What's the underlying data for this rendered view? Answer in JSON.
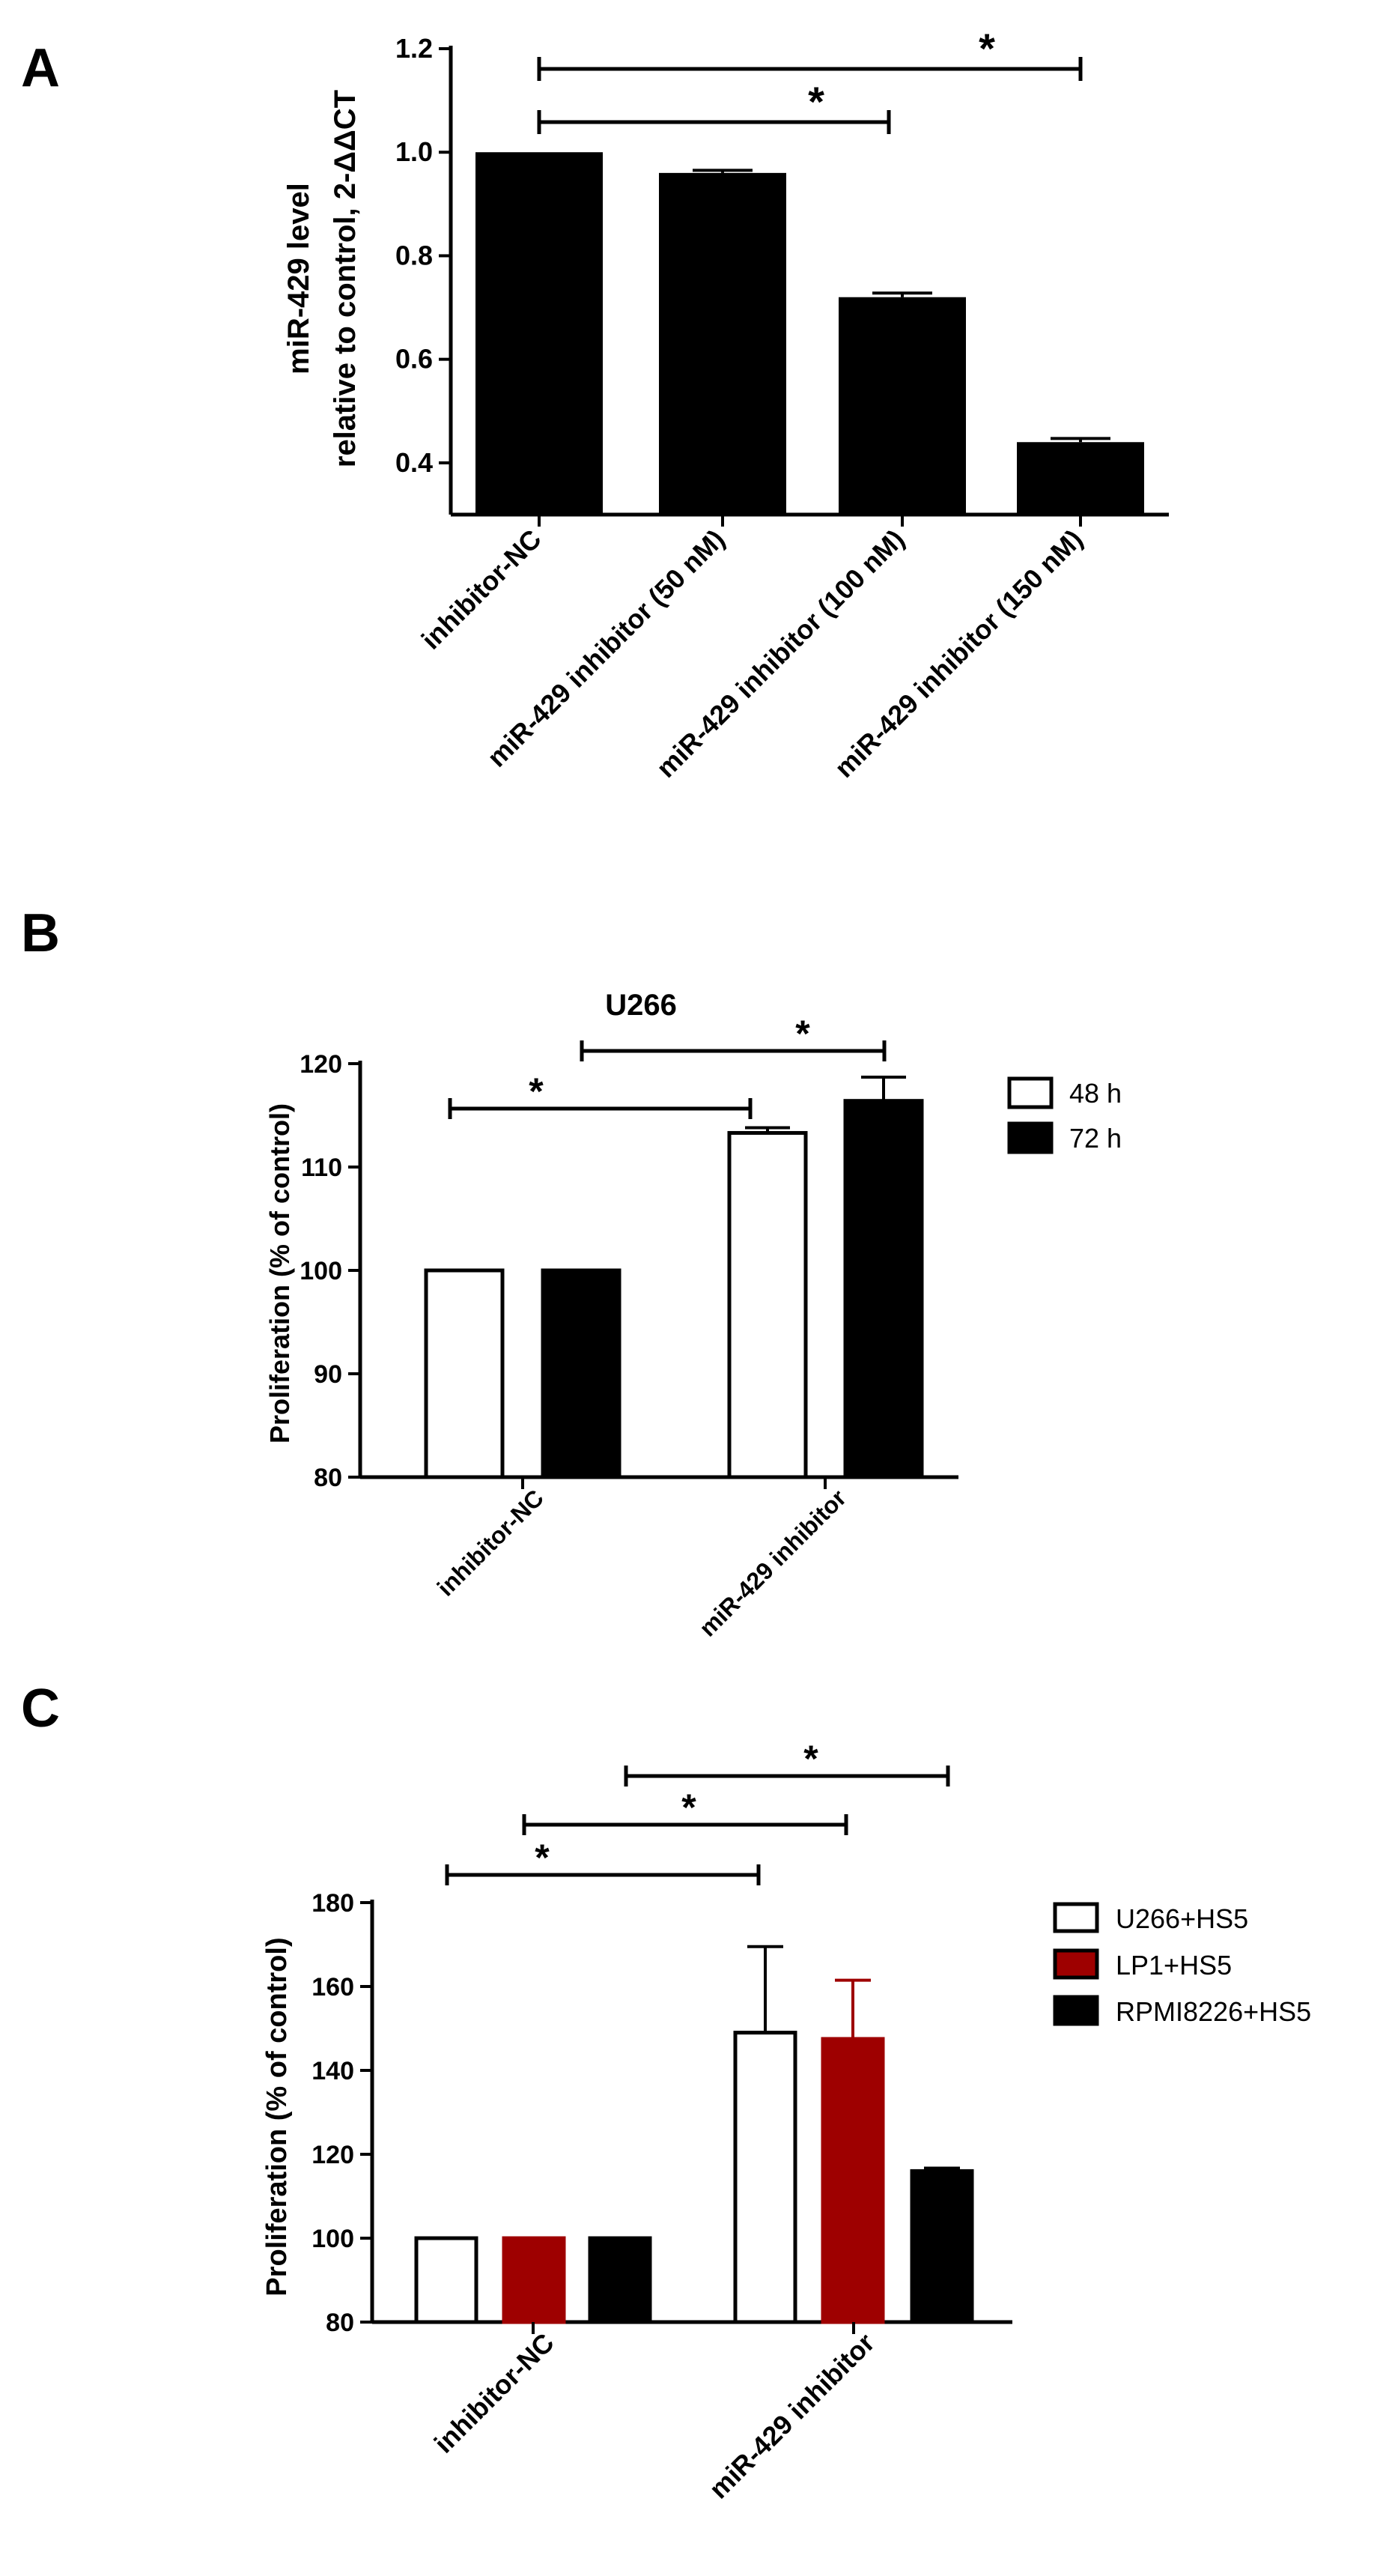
{
  "panels": [
    {
      "letter": "A"
    },
    {
      "letter": "B"
    },
    {
      "letter": "C"
    }
  ],
  "chart_data": [
    {
      "type": "bar",
      "title": "",
      "xlabel": "",
      "ylabel": [
        "miR-429 level",
        "relative to control, 2-ΔΔCT"
      ],
      "ylim": [
        0.3,
        1.2
      ],
      "yticks": [
        0.4,
        0.6,
        0.8,
        1.0,
        1.2
      ],
      "ytick_labels": [
        "0.4",
        "0.6",
        "0.8",
        "1.0",
        "1.2"
      ],
      "categories": [
        "inhibitor-NC",
        "miR-429 inhibitor (50 nM)",
        "miR-429 inhibitor (100 nM)",
        "miR-429 inhibitor (150 nM)"
      ],
      "series": [
        {
          "name": "miR-429 level",
          "color": "#000000",
          "values": [
            1.0,
            0.96,
            0.72,
            0.44
          ],
          "errors": [
            0.0,
            0.005,
            0.008,
            0.007
          ]
        }
      ],
      "significance": [
        {
          "from": 0,
          "to": 3,
          "label": "*"
        },
        {
          "from": 0,
          "to": 2,
          "label": "*"
        }
      ]
    },
    {
      "type": "bar",
      "title": "U266",
      "xlabel": "",
      "ylabel": "Proliferation (% of control)",
      "ylim": [
        80,
        120
      ],
      "yticks": [
        80,
        90,
        100,
        110,
        120
      ],
      "ytick_labels": [
        "80",
        "90",
        "100",
        "110",
        "120"
      ],
      "categories": [
        "inhibitor-NC",
        "miR-429 inhibitor"
      ],
      "legend_position": "top-right",
      "series": [
        {
          "name": "48 h",
          "fill": "#ffffff",
          "values": [
            100,
            113.3
          ],
          "errors": [
            0,
            0.5
          ]
        },
        {
          "name": "72 h",
          "fill": "#000000",
          "values": [
            100,
            116.4
          ],
          "errors": [
            0,
            2.3
          ]
        }
      ],
      "significance": [
        {
          "from_cat": 0,
          "from_series": 0,
          "to_cat": 1,
          "to_series": 0,
          "label": "*"
        },
        {
          "from_cat": 0,
          "from_series": 1,
          "to_cat": 1,
          "to_series": 1,
          "label": "*"
        }
      ]
    },
    {
      "type": "bar",
      "title": "",
      "xlabel": "",
      "ylabel": "Proliferation (% of control)",
      "ylim": [
        80,
        180
      ],
      "yticks": [
        80,
        100,
        120,
        140,
        160,
        180
      ],
      "ytick_labels": [
        "80",
        "100",
        "120",
        "140",
        "160",
        "180"
      ],
      "categories": [
        "inhibitor-NC",
        "miR-429 inhibitor"
      ],
      "legend_position": "right",
      "series": [
        {
          "name": "U266+HS5",
          "fill": "#ffffff",
          "values": [
            100,
            149
          ],
          "errors": [
            0,
            20.5
          ]
        },
        {
          "name": "LP1+HS5",
          "fill": "#9e0000",
          "values": [
            100,
            147.5
          ],
          "errors": [
            0,
            14
          ]
        },
        {
          "name": "RPMI8226+HS5",
          "fill": "#000000",
          "values": [
            100,
            116
          ],
          "errors": [
            0,
            0.7
          ]
        }
      ],
      "significance": [
        {
          "from_cat": 0,
          "from_series": 0,
          "to_cat": 1,
          "to_series": 0,
          "label": "*"
        },
        {
          "from_cat": 0,
          "from_series": 1,
          "to_cat": 1,
          "to_series": 1,
          "label": "*"
        },
        {
          "from_cat": 0,
          "from_series": 2,
          "to_cat": 1,
          "to_series": 2,
          "label": "*"
        }
      ]
    }
  ]
}
